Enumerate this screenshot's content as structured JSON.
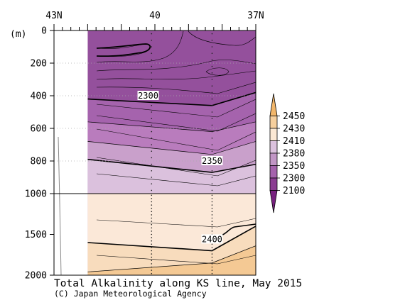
{
  "chart_data": {
    "type": "contour section",
    "title": "Total Alkalinity along KS line, May 2015",
    "credit": "(C) Japan Meteorological Agency",
    "x_axis": {
      "ticks": [
        "43N",
        "40",
        "37N"
      ],
      "tick_latitudes": [
        43,
        40,
        37
      ],
      "range": [
        43,
        37
      ]
    },
    "y_axis": {
      "unit": "(m)",
      "ticks_upper": [
        0,
        200,
        400,
        600,
        800,
        1000
      ],
      "ticks_lower": [
        1500,
        2000
      ],
      "range": [
        0,
        2000
      ],
      "break_at": 1000
    },
    "data_latitude_start": 42.0,
    "station_latitudes": [
      42.0,
      40.1,
      38.3,
      37.0
    ],
    "contour_labels": [
      {
        "value": "2300",
        "lat": 40.2,
        "depth": 400
      },
      {
        "value": "2350",
        "lat": 38.3,
        "depth": 800
      },
      {
        "value": "2400",
        "lat": 38.3,
        "depth": 1560
      }
    ],
    "fill_bands": [
      {
        "depth_left": 0,
        "depth_mid": 0,
        "depth_right": 0,
        "color": "#94509c"
      },
      {
        "depth_left": 420,
        "depth_mid": 460,
        "depth_right": 380,
        "color": "#a563ad"
      },
      {
        "depth_left": 560,
        "depth_mid": 620,
        "depth_right": 560,
        "color": "#b97cbd"
      },
      {
        "depth_left": 680,
        "depth_mid": 760,
        "depth_right": 680,
        "color": "#c9a0cb"
      },
      {
        "depth_left": 790,
        "depth_mid": 870,
        "depth_right": 820,
        "color": "#dbc1dd"
      },
      {
        "depth_left": 1000,
        "depth_mid": 1000,
        "depth_right": 1000,
        "color": "#fbe8d8"
      },
      {
        "depth_left": 1600,
        "depth_mid": 1700,
        "depth_right": 1400,
        "color": "#f8dcbd"
      },
      {
        "depth_left": 1960,
        "depth_mid": 1850,
        "depth_right": 1640,
        "color": "#f4c994"
      }
    ],
    "colorbar": {
      "labels": [
        "2450",
        "2430",
        "2410",
        "2380",
        "2350",
        "2300",
        "2100"
      ],
      "colors": [
        "#f2b66a",
        "#f6cf9d",
        "#fbe8d4",
        "#dbc1dd",
        "#c196c5",
        "#a563ad",
        "#8b3d92",
        "#77207f"
      ]
    }
  }
}
